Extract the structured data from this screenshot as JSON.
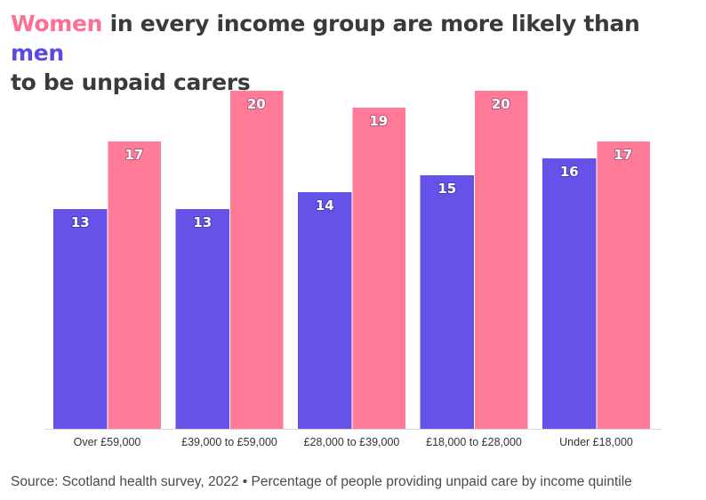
{
  "title": {
    "highlight_women": "Women",
    "middle": " in every income group are more likely than ",
    "highlight_men": "men",
    "line2": "to be unpaid carers"
  },
  "source": "Source: Scotland health survey, 2022 • Percentage of people providing unpaid care by income quintile",
  "colors": {
    "men": "#6452e9",
    "women": "#ff7b98",
    "title_women": "#ff6f91",
    "title_men": "#5b4be0"
  },
  "chart_data": {
    "type": "bar",
    "title": "Women in every income group are more likely than men to be unpaid carers",
    "xlabel": "",
    "ylabel": "",
    "ylim": [
      0,
      20
    ],
    "grid": false,
    "categories": [
      "Over £59,000",
      "£39,000 to £59,000",
      "£28,000 to £39,000",
      "£18,000 to £28,000",
      "Under £18,000"
    ],
    "series": [
      {
        "name": "Men",
        "values": [
          13,
          13,
          14,
          15,
          16
        ]
      },
      {
        "name": "Women",
        "values": [
          17,
          20,
          19,
          20,
          17
        ]
      }
    ]
  }
}
